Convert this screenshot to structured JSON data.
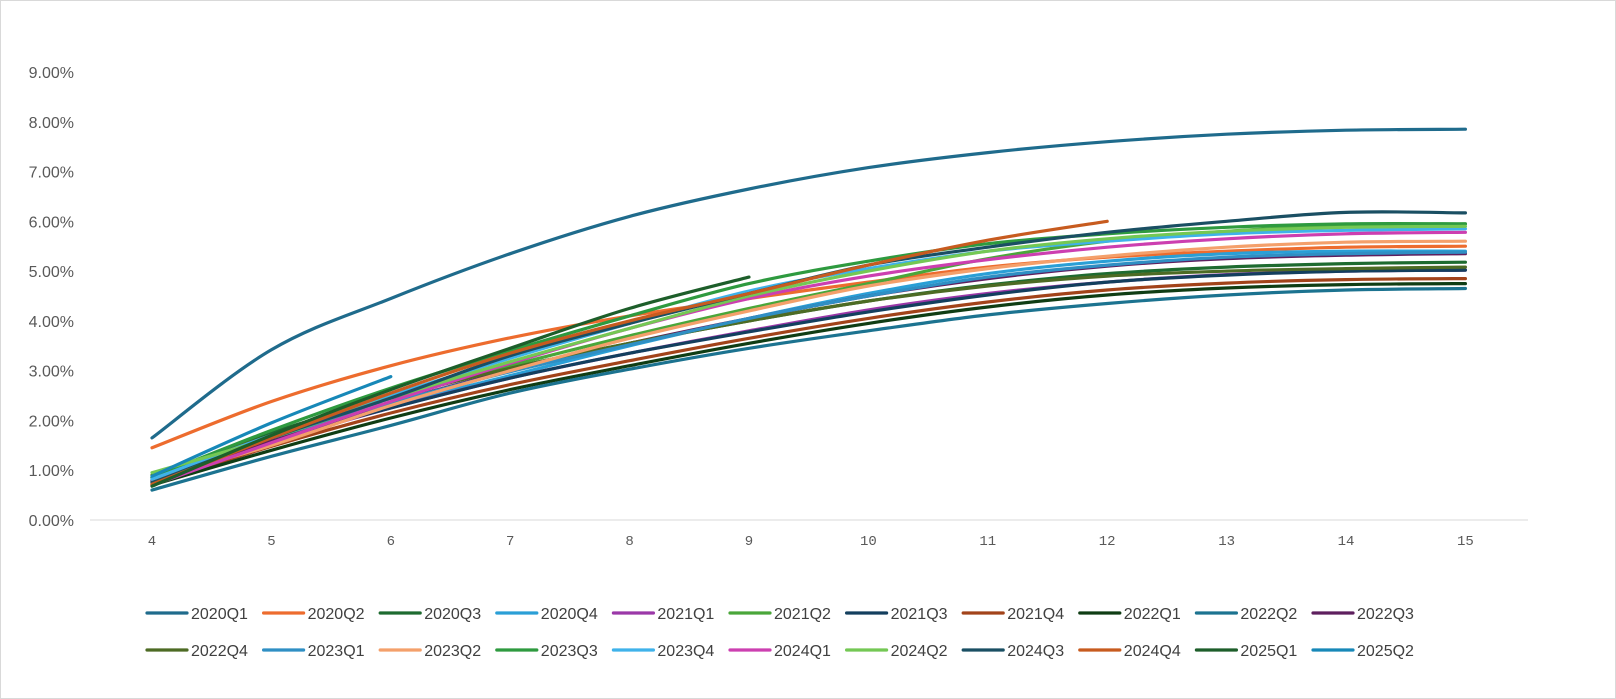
{
  "chart_data": {
    "type": "line",
    "title": "",
    "xlabel": "",
    "ylabel": "",
    "x": [
      4,
      5,
      6,
      7,
      8,
      9,
      10,
      11,
      12,
      13,
      14,
      15
    ],
    "x_tick_labels": [
      "4",
      "5",
      "6",
      "7",
      "8",
      "9",
      "10",
      "11",
      "12",
      "13",
      "14",
      "15"
    ],
    "ylim": [
      0,
      0.09
    ],
    "y_tick_labels": [
      "0.00%",
      "1.00%",
      "2.00%",
      "3.00%",
      "4.00%",
      "5.00%",
      "6.00%",
      "7.00%",
      "8.00%",
      "9.00%"
    ],
    "y_ticks": [
      0,
      0.01,
      0.02,
      0.03,
      0.04,
      0.05,
      0.06,
      0.07,
      0.08,
      0.09
    ],
    "grid": false,
    "legend_position": "bottom",
    "series": [
      {
        "name": "2020Q1",
        "color": "#1f6b8c",
        "values": [
          0.0165,
          0.0342,
          0.0445,
          0.0535,
          0.061,
          0.0665,
          0.0708,
          0.0738,
          0.076,
          0.0775,
          0.0783,
          0.0785
        ]
      },
      {
        "name": "2020Q2",
        "color": "#ed6c2e",
        "values": [
          0.0145,
          0.0238,
          0.031,
          0.0366,
          0.041,
          0.0445,
          0.0478,
          0.0508,
          0.0528,
          0.054,
          0.0548,
          0.055
        ]
      },
      {
        "name": "2020Q3",
        "color": "#1e6b30",
        "values": [
          0.0082,
          0.0175,
          0.0245,
          0.0305,
          0.0355,
          0.04,
          0.044,
          0.0472,
          0.0495,
          0.0508,
          0.0515,
          0.0518
        ]
      },
      {
        "name": "2020Q4",
        "color": "#2a9fd6",
        "values": [
          0.0078,
          0.016,
          0.023,
          0.029,
          0.035,
          0.0405,
          0.0455,
          0.0495,
          0.052,
          0.0535,
          0.054,
          0.054
        ]
      },
      {
        "name": "2021Q1",
        "color": "#9b38a8",
        "values": [
          0.0075,
          0.0155,
          0.0225,
          0.0285,
          0.0335,
          0.038,
          0.0422,
          0.0455,
          0.0478,
          0.0493,
          0.05,
          0.0502
        ]
      },
      {
        "name": "2021Q2",
        "color": "#4aa63a",
        "values": [
          0.0085,
          0.017,
          0.0245,
          0.031,
          0.037,
          0.0425,
          0.0475,
          0.0525,
          0.056,
          0.058,
          0.0592,
          0.0595
        ]
      },
      {
        "name": "2021Q3",
        "color": "#133f5e",
        "values": [
          0.0078,
          0.016,
          0.0225,
          0.0285,
          0.0335,
          0.0378,
          0.0418,
          0.0452,
          0.0478,
          0.0492,
          0.05,
          0.0502
        ]
      },
      {
        "name": "2021Q4",
        "color": "#a2431a",
        "values": [
          0.0072,
          0.0148,
          0.0215,
          0.0272,
          0.032,
          0.0365,
          0.0405,
          0.0438,
          0.0462,
          0.0476,
          0.0483,
          0.0485
        ]
      },
      {
        "name": "2022Q1",
        "color": "#0f3d14",
        "values": [
          0.007,
          0.014,
          0.0205,
          0.0262,
          0.031,
          0.0355,
          0.0395,
          0.0428,
          0.0452,
          0.0466,
          0.0473,
          0.0475
        ]
      },
      {
        "name": "2022Q2",
        "color": "#1c7390",
        "values": [
          0.006,
          0.0128,
          0.019,
          0.0255,
          0.0303,
          0.0345,
          0.038,
          0.0412,
          0.0435,
          0.0452,
          0.0462,
          0.0465
        ]
      },
      {
        "name": "2022Q3",
        "color": "#5e1f5e",
        "values": [
          0.008,
          0.016,
          0.0235,
          0.03,
          0.0355,
          0.0405,
          0.045,
          0.0485,
          0.051,
          0.0525,
          0.0532,
          0.0535
        ]
      },
      {
        "name": "2022Q4",
        "color": "#4d6b24",
        "values": [
          0.009,
          0.017,
          0.0245,
          0.0305,
          0.0355,
          0.04,
          0.044,
          0.047,
          0.049,
          0.05,
          0.0505,
          0.0508
        ]
      },
      {
        "name": "2023Q1",
        "color": "#2f8fc4",
        "values": [
          0.0085,
          0.0165,
          0.0235,
          0.0298,
          0.0352,
          0.0405,
          0.045,
          0.0488,
          0.0512,
          0.0528,
          0.0535,
          0.0538
        ]
      },
      {
        "name": "2023Q2",
        "color": "#f4a06b",
        "values": [
          0.0082,
          0.015,
          0.023,
          0.03,
          0.0365,
          0.042,
          0.047,
          0.0505,
          0.053,
          0.0548,
          0.0558,
          0.056
        ]
      },
      {
        "name": "2023Q3",
        "color": "#2e9a3f",
        "values": [
          0.0085,
          0.018,
          0.0265,
          0.034,
          0.041,
          0.0475,
          0.052,
          0.0555,
          0.0575,
          0.0588,
          0.0595,
          0.0595
        ]
      },
      {
        "name": "2023Q4",
        "color": "#3fb2ea",
        "values": [
          0.0082,
          0.017,
          0.025,
          0.0325,
          0.0395,
          0.046,
          0.0505,
          0.054,
          0.056,
          0.0575,
          0.0582,
          0.0585
        ]
      },
      {
        "name": "2024Q1",
        "color": "#cc3fb0",
        "values": [
          0.007,
          0.0155,
          0.0238,
          0.0315,
          0.0385,
          0.0445,
          0.049,
          0.0523,
          0.0548,
          0.0565,
          0.0575,
          0.0578
        ]
      },
      {
        "name": "2024Q2",
        "color": "#74c854",
        "values": [
          0.0095,
          0.0165,
          0.0245,
          0.0318,
          0.0385,
          0.045,
          0.05,
          0.054,
          0.0565,
          0.058,
          0.0588,
          0.059
        ]
      },
      {
        "name": "2024Q3",
        "color": "#1a4f63",
        "values": [
          0.0075,
          0.0165,
          0.0245,
          0.033,
          0.0395,
          0.0455,
          0.0512,
          0.0548,
          0.0578,
          0.06,
          0.0618,
          0.0617
        ]
      },
      {
        "name": "2024Q4",
        "color": "#c75b1f",
        "values": [
          0.0072,
          0.0165,
          0.0255,
          0.0335,
          0.04,
          0.0455,
          0.0512,
          0.0562,
          0.06,
          null,
          null,
          null
        ]
      },
      {
        "name": "2025Q1",
        "color": "#1d5e2a",
        "values": [
          0.0068,
          0.017,
          0.0262,
          0.0345,
          0.0425,
          0.0488,
          null,
          null,
          null,
          null,
          null,
          null
        ]
      },
      {
        "name": "2025Q2",
        "color": "#1788b8",
        "values": [
          0.0088,
          0.0195,
          0.0288,
          null,
          null,
          null,
          null,
          null,
          null,
          null,
          null,
          null
        ]
      }
    ]
  }
}
